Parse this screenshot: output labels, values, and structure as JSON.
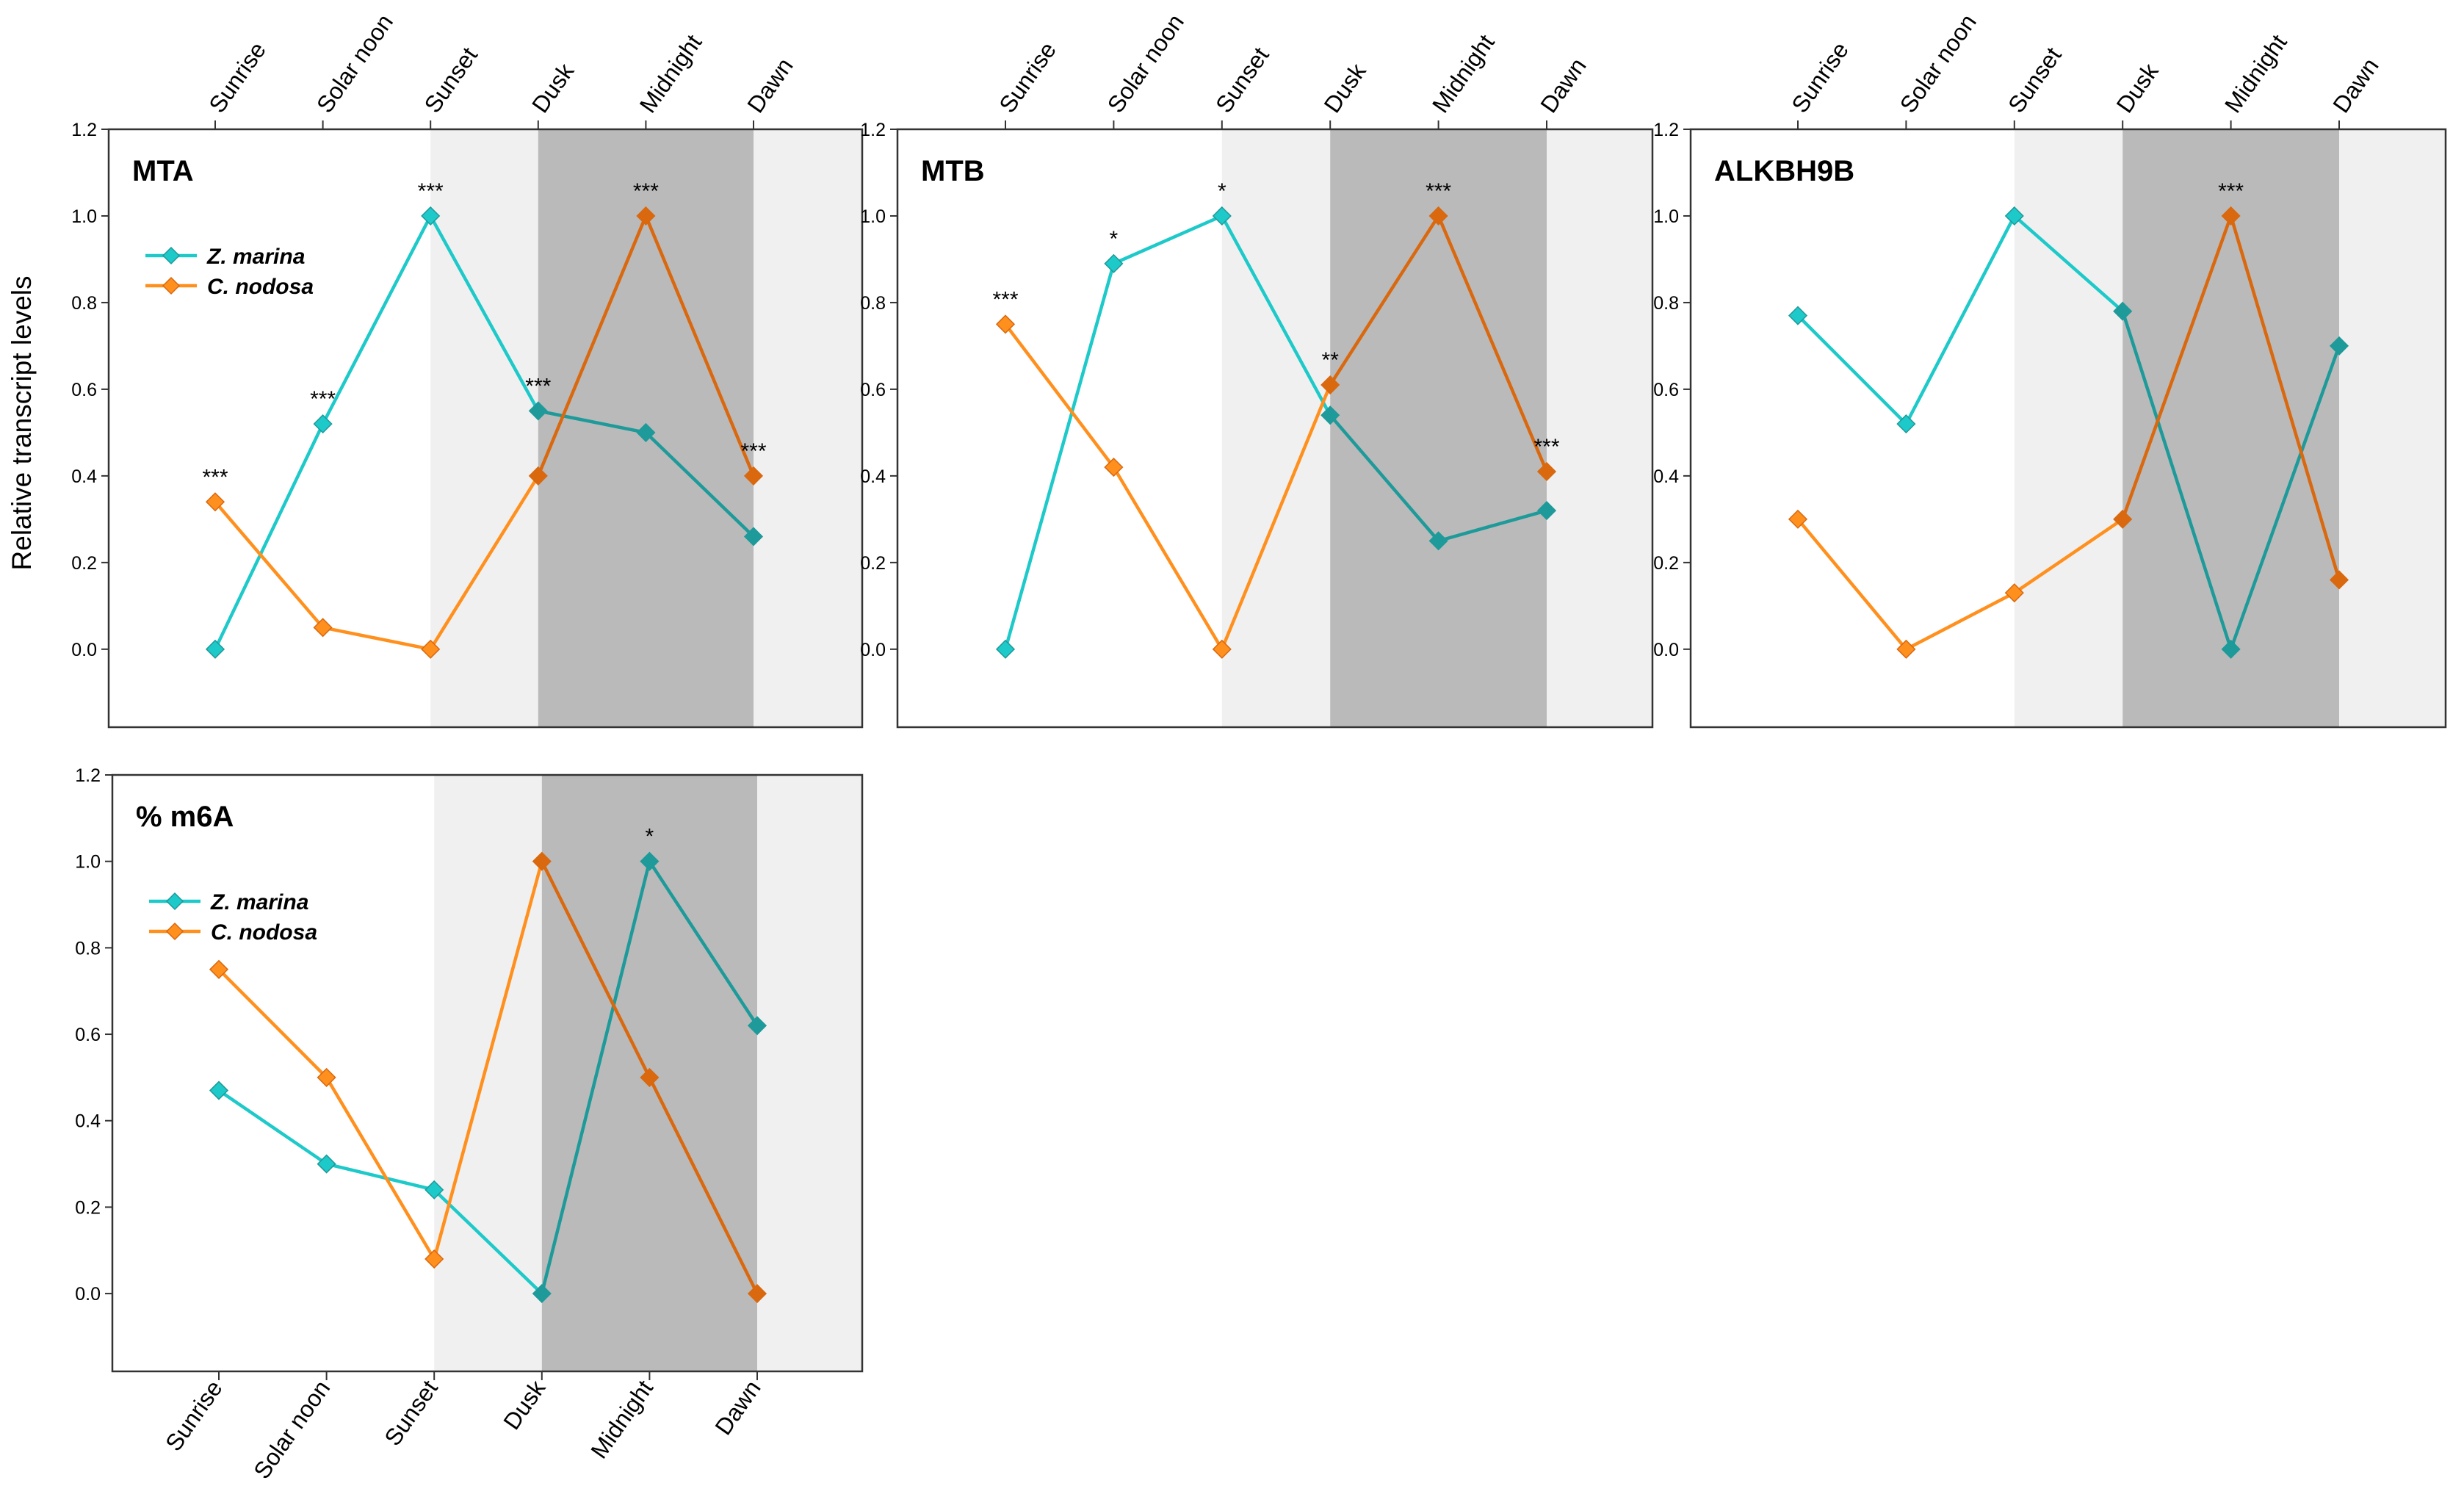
{
  "colors": {
    "z_marina": "#1ec9c9",
    "z_marina_dark": "#1d9a99",
    "c_nodosa": "#ff901e",
    "c_nodosa_dark": "#d9680e",
    "night_light": "#f0f0f0",
    "night_dark": "#bababa"
  },
  "figure": {
    "ylabel": "Relative transcript levels",
    "legend": [
      "Z. marina",
      "C. nodosa"
    ]
  },
  "chart_data": [
    {
      "type": "line",
      "title": "MTA",
      "categories": [
        "Sunrise",
        "Solar noon",
        "Sunset",
        "Dusk",
        "Midnight",
        "Dawn"
      ],
      "series": [
        {
          "name": "Z. marina",
          "values": [
            0.0,
            0.52,
            1.0,
            0.55,
            0.5,
            0.26
          ]
        },
        {
          "name": "C. nodosa",
          "values": [
            0.34,
            0.05,
            0.0,
            0.4,
            1.0,
            0.4
          ]
        }
      ],
      "significance": [
        "***",
        "***",
        "***",
        "***",
        "***",
        "***"
      ],
      "ylim": [
        -0.18,
        1.2
      ],
      "yticks": [
        "0.0",
        "0.2",
        "0.4",
        "0.6",
        "0.8",
        "1.0",
        "1.2"
      ],
      "ylabel": "Relative transcript levels",
      "legend": true,
      "category_axis": "top",
      "shading": {
        "light_start": "Sunset",
        "dark_start": "Dusk",
        "dark_end": "Dawn"
      }
    },
    {
      "type": "line",
      "title": "MTB",
      "categories": [
        "Sunrise",
        "Solar noon",
        "Sunset",
        "Dusk",
        "Midnight",
        "Dawn"
      ],
      "series": [
        {
          "name": "Z. marina",
          "values": [
            0.0,
            0.89,
            1.0,
            0.54,
            0.25,
            0.32
          ]
        },
        {
          "name": "C. nodosa",
          "values": [
            0.75,
            0.42,
            0.0,
            0.61,
            1.0,
            0.41
          ]
        }
      ],
      "significance": [
        "***",
        "*",
        "*",
        "**",
        "***",
        "***"
      ],
      "ylim": [
        -0.18,
        1.2
      ],
      "yticks": [
        "0.0",
        "0.2",
        "0.4",
        "0.6",
        "0.8",
        "1.0",
        "1.2"
      ],
      "legend": false,
      "category_axis": "top",
      "shading": {
        "light_start": "Sunset",
        "dark_start": "Dusk",
        "dark_end": "Dawn"
      }
    },
    {
      "type": "line",
      "title": "ALKBH9B",
      "categories": [
        "Sunrise",
        "Solar noon",
        "Sunset",
        "Dusk",
        "Midnight",
        "Dawn"
      ],
      "series": [
        {
          "name": "Z. marina",
          "values": [
            0.77,
            0.52,
            1.0,
            0.78,
            0.0,
            0.7
          ]
        },
        {
          "name": "C. nodosa",
          "values": [
            0.3,
            0.0,
            0.13,
            0.3,
            1.0,
            0.16
          ]
        }
      ],
      "significance": [
        "",
        "",
        "",
        "",
        "***",
        ""
      ],
      "ylim": [
        -0.18,
        1.2
      ],
      "yticks": [
        "0.0",
        "0.2",
        "0.4",
        "0.6",
        "0.8",
        "1.0",
        "1.2"
      ],
      "legend": false,
      "category_axis": "top",
      "shading": {
        "light_start": "Sunset",
        "dark_start": "Dusk",
        "dark_end": "Dawn"
      }
    },
    {
      "type": "line",
      "title": "% m6A",
      "categories": [
        "Sunrise",
        "Solar noon",
        "Sunset",
        "Dusk",
        "Midnight",
        "Dawn"
      ],
      "series": [
        {
          "name": "Z. marina",
          "values": [
            0.47,
            0.3,
            0.24,
            0.0,
            1.0,
            0.62
          ]
        },
        {
          "name": "C. nodosa",
          "values": [
            0.75,
            0.5,
            0.08,
            1.0,
            0.5,
            0.0
          ]
        }
      ],
      "significance": [
        "",
        "",
        "",
        "",
        "*",
        ""
      ],
      "ylim": [
        -0.18,
        1.2
      ],
      "yticks": [
        "0.0",
        "0.2",
        "0.4",
        "0.6",
        "0.8",
        "1.0",
        "1.2"
      ],
      "legend": true,
      "category_axis": "bottom",
      "shading": {
        "light_start": "Sunset",
        "dark_start": "Dusk",
        "dark_end": "Dawn"
      }
    }
  ]
}
